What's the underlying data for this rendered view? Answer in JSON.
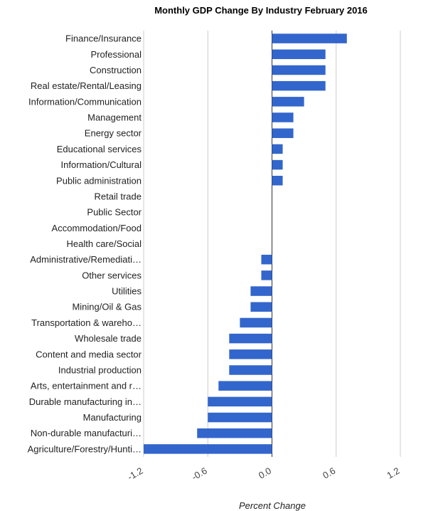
{
  "chart_data": {
    "type": "bar",
    "orientation": "horizontal",
    "title": "Monthly GDP Change By Industry February 2016",
    "xlabel": "Percent Change",
    "ylabel": "",
    "xlim": [
      -1.2,
      1.2
    ],
    "xticks": [
      -1.2,
      -0.6,
      0.0,
      0.6,
      1.2
    ],
    "xtick_labels": [
      "-1.2",
      "-0.6",
      "0.0",
      "0.6",
      "1.2"
    ],
    "grid": true,
    "bar_color": "#3366cc",
    "categories": [
      "Finance/Insurance",
      "Professional",
      "Construction",
      "Real estate/Rental/Leasing",
      "Information/Communication",
      "Management",
      "Energy sector",
      "Educational services",
      "Information/Cultural",
      "Public administration",
      "Retail trade",
      "Public Sector",
      "Accommodation/Food",
      "Health care/Social",
      "Administrative/Remediati…",
      "Other services",
      "Utilities",
      "Mining/Oil & Gas",
      "Transportation & wareho…",
      "Wholesale trade",
      "Content and media sector",
      "Industrial production",
      "Arts, entertainment and r…",
      "Durable manufacturing in…",
      "Manufacturing",
      "Non-durable manufacturi…",
      "Agriculture/Forestry/Hunti…"
    ],
    "values": [
      0.7,
      0.5,
      0.5,
      0.5,
      0.3,
      0.2,
      0.2,
      0.1,
      0.1,
      0.1,
      0.0,
      0.0,
      0.0,
      0.0,
      -0.1,
      -0.1,
      -0.2,
      -0.2,
      -0.3,
      -0.4,
      -0.4,
      -0.4,
      -0.5,
      -0.6,
      -0.6,
      -0.7,
      -1.2
    ]
  }
}
